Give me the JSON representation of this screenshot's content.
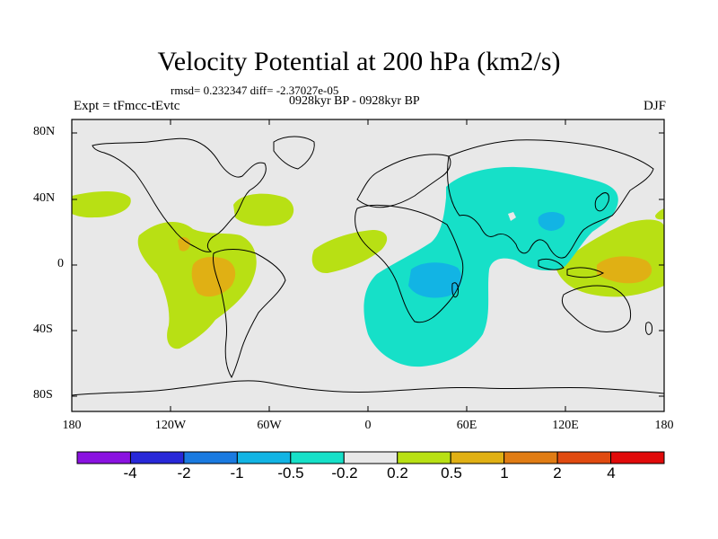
{
  "title": "Velocity Potential at 200 hPa (km2/s)",
  "stats": "rmsd= 0.232347 diff= -2.37027e-05",
  "expt": "Expt = tFmcc-tEvtc",
  "period": "0928kyr BP - 0928kyr BP",
  "season": "DJF",
  "lat_labels": [
    "80N",
    "40N",
    "0",
    "40S",
    "80S"
  ],
  "lon_labels": [
    "180",
    "120W",
    "60W",
    "0",
    "60E",
    "120E",
    "180"
  ],
  "colorbar": {
    "labels": [
      "-4",
      "-2",
      "-1",
      "-0.5",
      "-0.2",
      "0.2",
      "0.5",
      "1",
      "2",
      "4"
    ],
    "colors": [
      "#8a12e0",
      "#2828d8",
      "#1a7ae0",
      "#12b4e4",
      "#16e0c8",
      "#e8e8e8",
      "#b8e014",
      "#e0b014",
      "#e07c14",
      "#e04a10",
      "#e00a0a"
    ]
  },
  "colors": {
    "land_bg": "#e8e8e8",
    "negative_weak": "#16e0c8",
    "negative_mid": "#12b4e4",
    "positive_weak": "#b8e014",
    "positive_mid": "#e0b014",
    "coast": "#000000"
  }
}
